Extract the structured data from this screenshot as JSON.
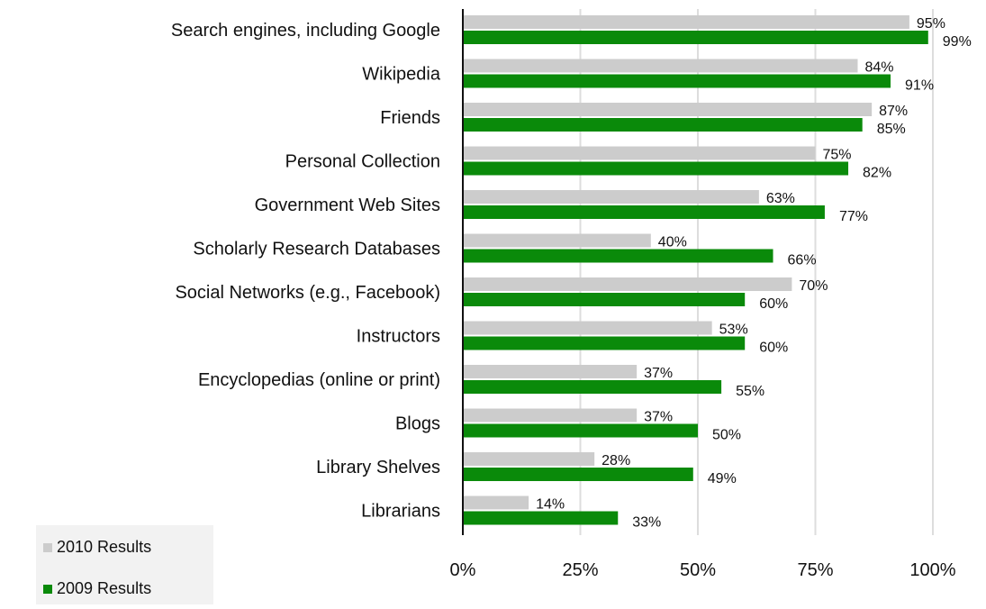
{
  "chart_data": {
    "type": "bar",
    "orientation": "horizontal",
    "categories": [
      "Search engines, including Google",
      "Wikipedia",
      "Friends",
      "Personal Collection",
      "Government Web Sites",
      "Scholarly Research Databases",
      "Social Networks (e.g., Facebook)",
      "Instructors",
      "Encyclopedias (online or print)",
      "Blogs",
      "Library Shelves",
      "Librarians"
    ],
    "series": [
      {
        "name": "2010 Results",
        "color": "#cccccc",
        "values": [
          95,
          84,
          87,
          75,
          63,
          40,
          70,
          53,
          37,
          37,
          28,
          14
        ],
        "labels": [
          "95%",
          "84%",
          "87%",
          "75%",
          "63%",
          "40%",
          "70%",
          "53%",
          "37%",
          "37%",
          "28%",
          "14%"
        ]
      },
      {
        "name": "2009 Results",
        "color": "#0a8a0a",
        "values": [
          99,
          91,
          85,
          82,
          77,
          66,
          60,
          60,
          55,
          50,
          49,
          33
        ],
        "labels": [
          "99%",
          "91%",
          "85%",
          "82%",
          "77%",
          "66%",
          "60%",
          "60%",
          "55%",
          "50%",
          "49%",
          "33%"
        ]
      }
    ],
    "xlim": [
      0,
      100
    ],
    "xticks": [
      0,
      25,
      50,
      75,
      100
    ],
    "xtick_labels": [
      "0%",
      "25%",
      "50%",
      "75%",
      "100%"
    ],
    "grid": true,
    "legend_position": "bottom-left"
  }
}
